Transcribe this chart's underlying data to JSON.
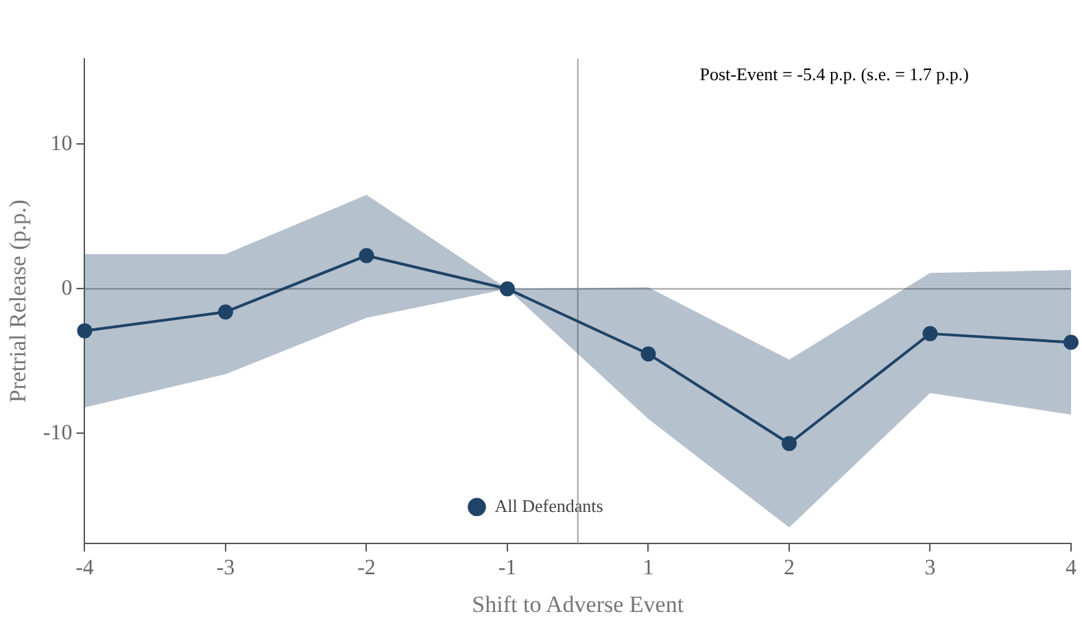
{
  "chart_data": {
    "type": "line",
    "xlabel": "Shift to Adverse Event",
    "ylabel": "Pretrial Release (p.p.)",
    "categories": [
      "-4",
      "-3",
      "-2",
      "-1",
      "1",
      "2",
      "3",
      "4"
    ],
    "series": [
      {
        "name": "All Defendants",
        "color": "#1f4468",
        "values": [
          -2.9,
          -1.6,
          2.3,
          0,
          -4.5,
          -10.7,
          -3.1,
          -3.7
        ],
        "lower": [
          -8.2,
          -5.9,
          -2.0,
          0,
          -9.0,
          -16.5,
          -7.2,
          -8.7
        ],
        "upper": [
          2.4,
          2.4,
          6.5,
          0,
          0.1,
          -4.9,
          1.1,
          1.3
        ]
      }
    ],
    "ylim": [
      -17.6,
      15.9
    ],
    "yticks": [
      -10,
      0,
      10
    ],
    "ref_lines": [
      {
        "axis": "y",
        "value": 0,
        "color": "#a0a0a0"
      }
    ],
    "annotations": [
      "Post-Event = -5.4 p.p. (s.e. = 1.7 p.p.)"
    ],
    "grid": false,
    "legend": "bottom",
    "marker": "circle",
    "line_style": "solid"
  }
}
